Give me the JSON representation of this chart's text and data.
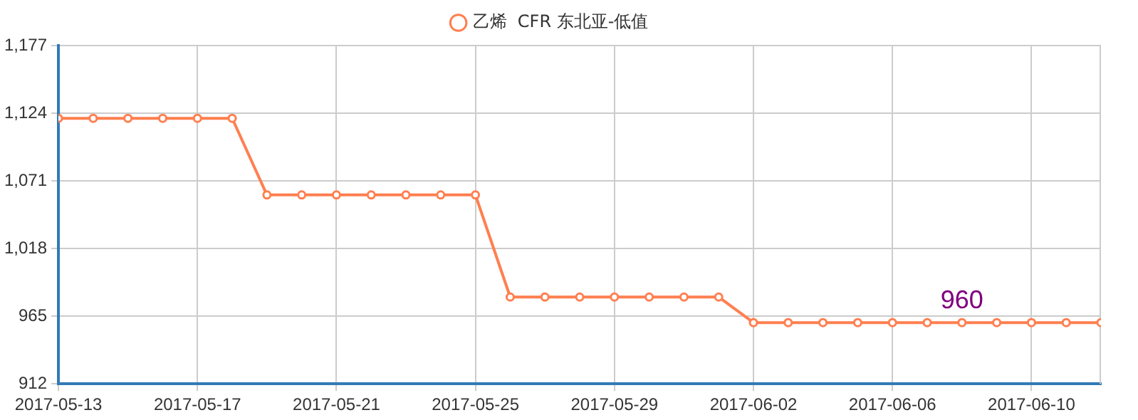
{
  "chart_data": {
    "type": "line",
    "x": [
      "2017-05-13",
      "2017-05-14",
      "2017-05-15",
      "2017-05-16",
      "2017-05-17",
      "2017-05-18",
      "2017-05-19",
      "2017-05-20",
      "2017-05-21",
      "2017-05-22",
      "2017-05-23",
      "2017-05-24",
      "2017-05-25",
      "2017-05-26",
      "2017-05-27",
      "2017-05-28",
      "2017-05-29",
      "2017-05-30",
      "2017-05-31",
      "2017-06-01",
      "2017-06-02",
      "2017-06-03",
      "2017-06-04",
      "2017-06-05",
      "2017-06-06",
      "2017-06-07",
      "2017-06-08",
      "2017-06-09",
      "2017-06-10",
      "2017-06-11",
      "2017-06-12"
    ],
    "series": [
      {
        "name": "乙烯  CFR 东北亚-低值",
        "color": "#ff7f50",
        "values": [
          1120,
          1120,
          1120,
          1120,
          1120,
          1120,
          1060,
          1060,
          1060,
          1060,
          1060,
          1060,
          1060,
          980,
          980,
          980,
          980,
          980,
          980,
          980,
          960,
          960,
          960,
          960,
          960,
          960,
          960,
          960,
          960,
          960,
          960
        ]
      }
    ],
    "xlim": [
      "2017-05-13",
      "2017-06-12"
    ],
    "xticks": [
      "2017-05-13",
      "2017-05-17",
      "2017-05-21",
      "2017-05-25",
      "2017-05-29",
      "2017-06-02",
      "2017-06-06",
      "2017-06-10"
    ],
    "ylim": [
      912,
      1177
    ],
    "yticks": [
      912,
      965,
      {
        "value": 1018,
        "label": "1,018"
      },
      {
        "value": 1071,
        "label": "1,071"
      },
      {
        "value": 1124,
        "label": "1,124"
      },
      {
        "value": 1177,
        "label": "1,177"
      }
    ],
    "annotations": [
      {
        "text": "960",
        "x": "2017-06-08",
        "y": 960
      }
    ],
    "grid": true,
    "legend": "top",
    "marker": "circle",
    "line_style": "solid"
  }
}
